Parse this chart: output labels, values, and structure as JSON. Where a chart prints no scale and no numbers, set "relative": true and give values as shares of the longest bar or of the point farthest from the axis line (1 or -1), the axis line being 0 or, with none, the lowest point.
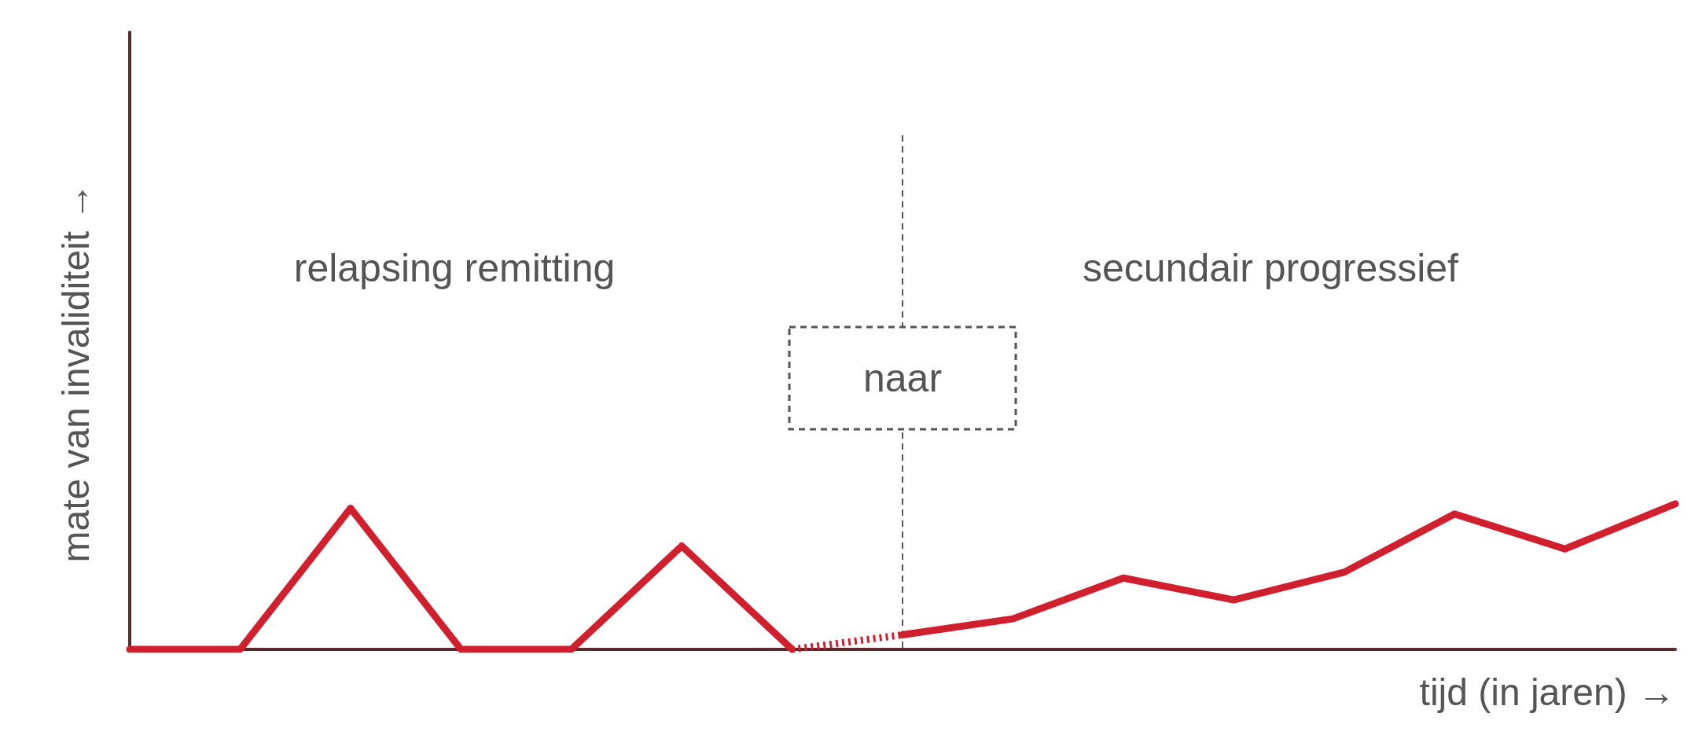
{
  "chart_data": {
    "type": "line",
    "relative": true,
    "xlabel": "tijd (in jaren) →",
    "ylabel": "mate van invaliditeit →",
    "annotations": [
      "relapsing remitting",
      "secundair progressief",
      "naar"
    ],
    "categories": [
      null,
      null,
      null,
      null,
      null,
      null,
      null,
      null,
      null,
      null,
      null,
      null,
      null,
      null,
      null
    ],
    "series": [
      {
        "color": "#d0202e",
        "line_style": "solid",
        "values": [
          0,
          0,
          0.97,
          0,
          0,
          0.71,
          0,
          null,
          null,
          null,
          null,
          null,
          null,
          null,
          null
        ]
      },
      {
        "color": "#d0202e",
        "line_style": "dotted",
        "values": [
          null,
          null,
          null,
          null,
          null,
          null,
          0,
          0.1,
          null,
          null,
          null,
          null,
          null,
          null,
          null
        ]
      },
      {
        "color": "#d0202e",
        "line_style": "solid",
        "values": [
          null,
          null,
          null,
          null,
          null,
          null,
          null,
          0.1,
          0.21,
          0.49,
          0.34,
          0.53,
          0.93,
          0.69,
          1
        ]
      }
    ]
  }
}
